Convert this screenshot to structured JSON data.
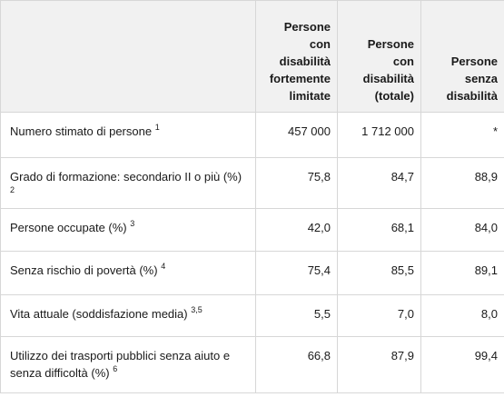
{
  "table": {
    "headers": [
      "",
      "Persone con disabilità fortemente limitate",
      "Persone con disabilità (totale)",
      "Persone senza disabilità"
    ],
    "header_lines": [
      [],
      [
        "Persone",
        "con",
        "disabilità",
        "fortemente",
        "limitate"
      ],
      [
        "Persone",
        "con",
        "disabilità",
        "(totale)"
      ],
      [
        "Persone",
        "senza",
        "disabilità"
      ]
    ],
    "rows": [
      {
        "label": "Numero stimato di persone",
        "note": "1",
        "values": [
          "457 000",
          "1 712 000",
          "*"
        ]
      },
      {
        "label": "Grado di formazione: secondario II o più (%)",
        "note": "2",
        "values": [
          "75,8",
          "84,7",
          "88,9"
        ]
      },
      {
        "label": "Persone occupate (%)",
        "note": "3",
        "values": [
          "42,0",
          "68,1",
          "84,0"
        ]
      },
      {
        "label": "Senza rischio di povertà  (%)",
        "note": "4",
        "values": [
          "75,4",
          "85,5",
          "89,1"
        ]
      },
      {
        "label": "Vita attuale (soddisfazione media)",
        "note": "3,5",
        "values": [
          "5,5",
          "7,0",
          "8,0"
        ]
      },
      {
        "label": "Utilizzo dei trasporti pubblici senza aiuto e senza difficoltà (%)",
        "note": "6",
        "values": [
          "66,8",
          "87,9",
          "99,4"
        ]
      }
    ]
  }
}
